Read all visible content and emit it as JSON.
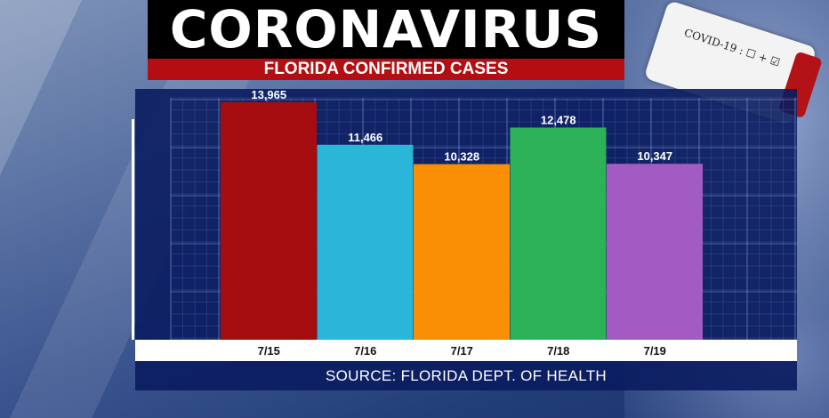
{
  "header": {
    "title": "CORONAVIRUS",
    "subtitle": "FLORIDA CONFIRMED CASES"
  },
  "test_tube": {
    "label": "COVID-19 : ☐ + ☑"
  },
  "footer": {
    "source": "SOURCE: FLORIDA DEPT. OF HEALTH"
  },
  "colors": {
    "panel": "#0a1c5f",
    "title_bg": "#000000",
    "subtitle_bg": "#b30f12"
  },
  "chart_data": {
    "type": "bar",
    "categories": [
      "7/15",
      "7/16",
      "7/17",
      "7/18",
      "7/19"
    ],
    "values": [
      13965,
      11466,
      10328,
      12478,
      10347
    ],
    "value_labels": [
      "13,965",
      "11,466",
      "10,328",
      "12,478",
      "10,347"
    ],
    "colors": [
      "#a50d10",
      "#29b6d9",
      "#fa8e05",
      "#2db25a",
      "#a25bc2"
    ],
    "ylim": [
      0,
      14500
    ],
    "grid": true,
    "legend": "none"
  }
}
